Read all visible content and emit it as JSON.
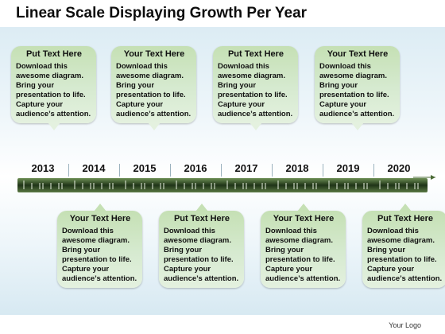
{
  "title": "Linear Scale Displaying Growth Per Year",
  "years": [
    "2013",
    "2014",
    "2015",
    "2016",
    "2017",
    "2018",
    "2019",
    "2020"
  ],
  "callouts_top": [
    {
      "heading": "Put Text Here",
      "body": "Download this awesome diagram. Bring your presentation to life. Capture your audience’s attention."
    },
    {
      "heading": "Your Text Here",
      "body": "Download this awesome diagram. Bring your presentation to life. Capture your audience’s attention."
    },
    {
      "heading": "Put Text Here",
      "body": "Download this awesome diagram. Bring your presentation to life. Capture your audience’s attention."
    },
    {
      "heading": "Your Text Here",
      "body": "Download this awesome diagram. Bring your presentation to life. Capture your audience’s attention."
    }
  ],
  "callouts_bottom": [
    {
      "heading": "Your Text Here",
      "body": "Download this awesome diagram. Bring your presentation to life. Capture your audience’s attention."
    },
    {
      "heading": "Put Text Here",
      "body": "Download this awesome diagram. Bring your presentation to life. Capture your audience’s attention."
    },
    {
      "heading": "Your Text Here",
      "body": "Download this awesome diagram. Bring your presentation to life. Capture your audience’s attention."
    },
    {
      "heading": "Put Text Here",
      "body": "Download this awesome diagram. Bring your presentation to life. Capture your audience’s attention."
    }
  ],
  "logo": "Your Logo",
  "colors": {
    "callout_fill": "#d6ead0",
    "axis": "#3a5a2a",
    "accent": "#c5e0b4"
  }
}
